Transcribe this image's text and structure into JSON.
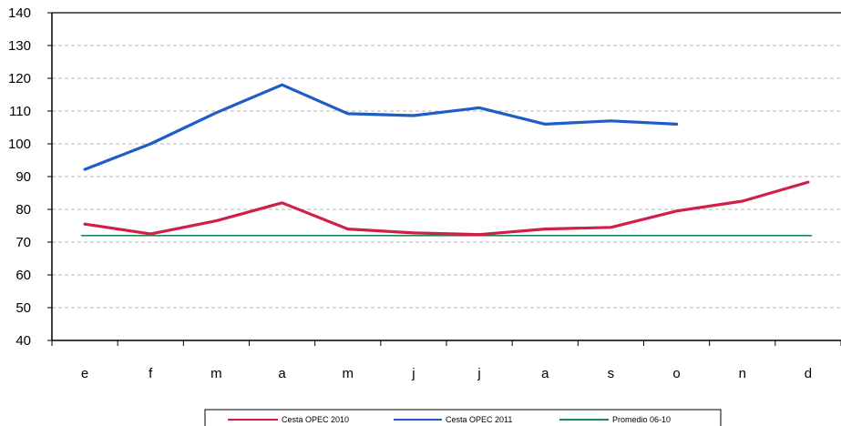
{
  "chart_data": {
    "type": "line",
    "categories": [
      "e",
      "f",
      "m",
      "a",
      "m",
      "j",
      "j",
      "a",
      "s",
      "o",
      "n",
      "d"
    ],
    "ylim": [
      40,
      140
    ],
    "yticks": [
      40,
      50,
      60,
      70,
      80,
      90,
      100,
      110,
      120,
      130,
      140
    ],
    "grid": true,
    "legend_placement": "bottom",
    "series": [
      {
        "name": "Cesta OPEC 2010",
        "color": "#d0204a",
        "values": [
          75.5,
          72.5,
          76.5,
          82,
          74,
          72.8,
          72.3,
          74,
          74.5,
          79.5,
          82.5,
          88.3
        ]
      },
      {
        "name": "Cesta OPEC 2011",
        "color": "#1f5dc6",
        "values": [
          92.2,
          100,
          109.5,
          118,
          109.2,
          108.6,
          111,
          106,
          107,
          106,
          null,
          null
        ]
      },
      {
        "name": "Promedio 06-10",
        "color": "#1e8a5a",
        "values": [
          72,
          72,
          72,
          72,
          72,
          72,
          72,
          72,
          72,
          72,
          72,
          72
        ]
      }
    ]
  }
}
